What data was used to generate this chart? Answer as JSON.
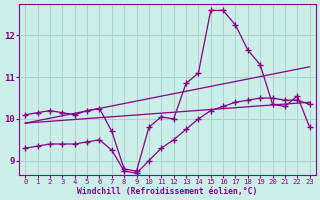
{
  "xlabel": "Windchill (Refroidissement éolien,°C)",
  "background_color": "#cceee8",
  "grid_color": "#aad4ce",
  "line_color": "#880088",
  "ylim": [
    8.65,
    12.75
  ],
  "xlim": [
    -0.5,
    23.5
  ],
  "yticks": [
    9,
    10,
    11,
    12
  ],
  "xticks": [
    0,
    1,
    2,
    3,
    4,
    5,
    6,
    7,
    8,
    9,
    10,
    11,
    12,
    13,
    14,
    15,
    16,
    17,
    18,
    19,
    20,
    21,
    22,
    23
  ],
  "line1_x": [
    0,
    1,
    2,
    3,
    4,
    5,
    6,
    7,
    8,
    9,
    10,
    11,
    12,
    13,
    14,
    15,
    16,
    17,
    18,
    19,
    20,
    21,
    22,
    23
  ],
  "line1_y": [
    10.1,
    10.15,
    10.2,
    10.15,
    10.1,
    10.2,
    10.25,
    9.7,
    8.8,
    8.75,
    9.8,
    10.05,
    10.0,
    10.85,
    11.1,
    12.6,
    12.6,
    12.25,
    11.65,
    11.3,
    10.35,
    10.3,
    10.55,
    9.8
  ],
  "line2_x": [
    0,
    1,
    2,
    3,
    4,
    5,
    6,
    7,
    8,
    9,
    10,
    11,
    12,
    13,
    14,
    15,
    16,
    17,
    18,
    19,
    20,
    21,
    22,
    23
  ],
  "line2_y": [
    9.3,
    9.35,
    9.4,
    9.4,
    9.4,
    9.45,
    9.5,
    9.25,
    8.75,
    8.7,
    9.0,
    9.3,
    9.5,
    9.75,
    10.0,
    10.2,
    10.3,
    10.4,
    10.45,
    10.5,
    10.5,
    10.45,
    10.45,
    10.35
  ],
  "line3_x": [
    0,
    23
  ],
  "line3_y": [
    9.9,
    11.25
  ],
  "line4_x": [
    0,
    23
  ],
  "line4_y": [
    9.9,
    10.4
  ]
}
